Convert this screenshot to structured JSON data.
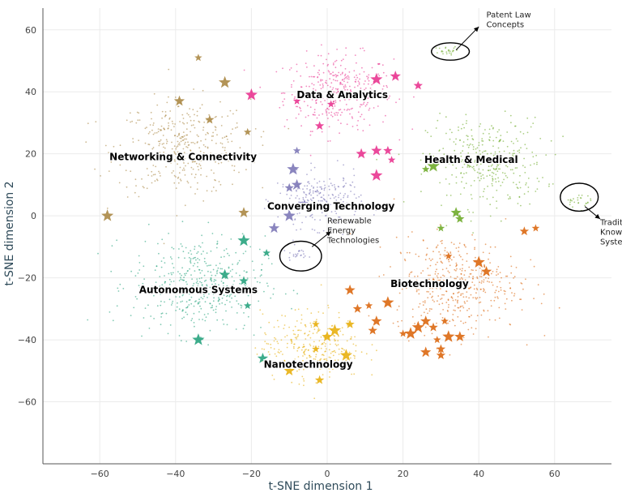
{
  "chart_data": {
    "type": "scatter",
    "xlabel": "t-SNE dimension 1",
    "ylabel": "t-SNE dimension 2",
    "xlim": [
      -75,
      75
    ],
    "ylim": [
      -80,
      67
    ],
    "xticks": [
      -60,
      -40,
      -20,
      0,
      20,
      40,
      60
    ],
    "yticks": [
      -60,
      -40,
      -20,
      0,
      20,
      40,
      60
    ],
    "grid": true,
    "clusters": [
      {
        "label": "Data & Analytics",
        "color": "#e7298a",
        "label_pos": [
          4,
          38
        ],
        "center": [
          3,
          40
        ],
        "spread": [
          13,
          11
        ],
        "density": 360,
        "stars": [
          [
            1,
            36
          ],
          [
            13,
            44
          ],
          [
            18,
            45
          ],
          [
            24,
            42
          ],
          [
            -8,
            37
          ],
          [
            -20,
            39
          ],
          [
            13,
            21
          ],
          [
            16,
            21
          ],
          [
            17,
            18
          ],
          [
            13,
            13
          ],
          [
            9,
            20
          ],
          [
            -2,
            29
          ]
        ]
      },
      {
        "label": "Networking & Connectivity",
        "color": "#a6813a",
        "label_pos": [
          -38,
          18
        ],
        "center": [
          -38,
          22
        ],
        "spread": [
          16,
          14
        ],
        "density": 380,
        "stars": [
          [
            -34,
            51
          ],
          [
            -27,
            43
          ],
          [
            -39,
            37
          ],
          [
            -31,
            31
          ],
          [
            -21,
            27
          ],
          [
            -58,
            0
          ],
          [
            -22,
            1
          ]
        ]
      },
      {
        "label": "Health & Medical",
        "color": "#66a61e",
        "label_pos": [
          38,
          17
        ],
        "center": [
          42,
          17
        ],
        "spread": [
          14,
          13
        ],
        "density": 340,
        "stars": [
          [
            26,
            15
          ],
          [
            28,
            16
          ],
          [
            34,
            1
          ],
          [
            35,
            -1
          ],
          [
            30,
            -4
          ]
        ]
      },
      {
        "label": "Converging Technology",
        "color": "#7570b3",
        "label_pos": [
          1,
          2
        ],
        "center": [
          -2,
          5
        ],
        "spread": [
          10,
          8
        ],
        "density": 240,
        "stars": [
          [
            -8,
            21
          ],
          [
            -9,
            15
          ],
          [
            -8,
            10
          ],
          [
            -10,
            9
          ],
          [
            -6,
            4
          ],
          [
            -10,
            0
          ],
          [
            -14,
            -4
          ]
        ]
      },
      {
        "label": "Autonomous Systems",
        "color": "#1b9e77",
        "label_pos": [
          -34,
          -25
        ],
        "center": [
          -34,
          -22
        ],
        "spread": [
          16,
          14
        ],
        "density": 440,
        "stars": [
          [
            -16,
            -12
          ],
          [
            -22,
            -8
          ],
          [
            -27,
            -19
          ],
          [
            -22,
            -21
          ],
          [
            -21,
            -29
          ],
          [
            -34,
            -40
          ],
          [
            -17,
            -46
          ]
        ]
      },
      {
        "label": "Biotechnology",
        "color": "#d95f02",
        "label_pos": [
          27,
          -23
        ],
        "center": [
          34,
          -22
        ],
        "spread": [
          15,
          14
        ],
        "density": 440,
        "stars": [
          [
            32,
            -13
          ],
          [
            40,
            -15
          ],
          [
            42,
            -18
          ],
          [
            52,
            -5
          ],
          [
            55,
            -4
          ],
          [
            28,
            -22
          ],
          [
            6,
            -24
          ],
          [
            8,
            -30
          ],
          [
            11,
            -29
          ],
          [
            16,
            -28
          ],
          [
            13,
            -34
          ],
          [
            12,
            -37
          ],
          [
            20,
            -38
          ],
          [
            24,
            -36
          ],
          [
            26,
            -34
          ],
          [
            28,
            -36
          ],
          [
            31,
            -34
          ],
          [
            22,
            -38
          ],
          [
            26,
            -44
          ],
          [
            30,
            -43
          ],
          [
            29,
            -40
          ],
          [
            32,
            -39
          ],
          [
            35,
            -39
          ],
          [
            30,
            -45
          ]
        ]
      },
      {
        "label": "Nanotechnology",
        "color": "#e6ab02",
        "label_pos": [
          -5,
          -49
        ],
        "center": [
          -4,
          -42
        ],
        "spread": [
          12,
          10
        ],
        "density": 300,
        "stars": [
          [
            -3,
            -35
          ],
          [
            2,
            -37
          ],
          [
            0,
            -39
          ],
          [
            6,
            -35
          ],
          [
            -3,
            -43
          ],
          [
            5,
            -45
          ],
          [
            -10,
            -50
          ],
          [
            -2,
            -53
          ]
        ]
      }
    ],
    "outlier_groups": [
      {
        "center": [
          32,
          53
        ],
        "spread": [
          3,
          1.5
        ],
        "color": "#66a61e",
        "count": 24
      },
      {
        "center": [
          66,
          5
        ],
        "spread": [
          3,
          2
        ],
        "color": "#66a61e",
        "count": 26
      },
      {
        "center": [
          -8,
          -12
        ],
        "spread": [
          2.5,
          2
        ],
        "color": "#7570b3",
        "count": 24
      }
    ],
    "annotations": [
      {
        "text": [
          "Patent Law",
          "Concepts"
        ],
        "circle": [
          32.5,
          53,
          5,
          2.8
        ],
        "arrow_from": [
          34,
          53.5
        ],
        "arrow_to": [
          40,
          61
        ],
        "text_pos": [
          42,
          64
        ]
      },
      {
        "text": [
          "Traditional",
          "Knowledge",
          "Systems"
        ],
        "circle": [
          66.5,
          6,
          5,
          4.5
        ],
        "arrow_from": [
          68,
          3
        ],
        "arrow_to": [
          72,
          -1
        ],
        "text_pos": [
          72,
          -3
        ]
      },
      {
        "text": [
          "Renewable",
          "Energy",
          "Technologies"
        ],
        "circle": [
          -7,
          -13,
          5.5,
          4.8
        ],
        "arrow_from": [
          -4,
          -10
        ],
        "arrow_to": [
          1,
          -5
        ],
        "text_pos": [
          0,
          -2.5
        ]
      }
    ]
  }
}
